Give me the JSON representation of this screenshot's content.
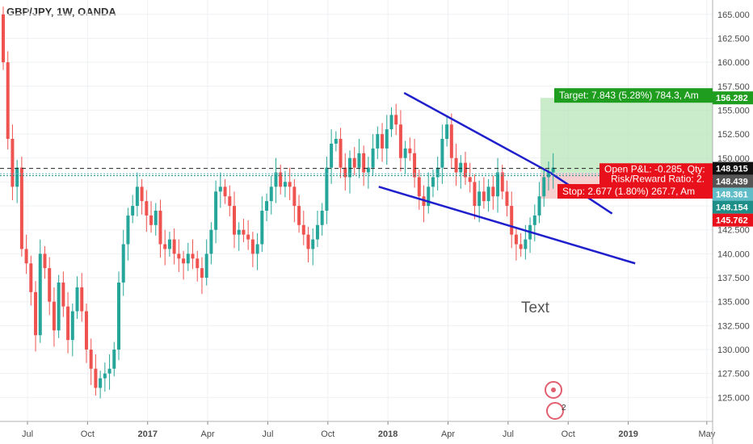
{
  "header": {
    "symbol": "GBP/JPY, 1W, OANDA"
  },
  "colors": {
    "up": "#26a69a",
    "down": "#ef5350",
    "trendline": "#1f1fcc",
    "target_zone": "#b9e6b9",
    "stop_zone": "#f7c4c4",
    "target_badge": "#1f9d1f",
    "stop_badge": "#e8101a",
    "position_badge": "#e8101a"
  },
  "chart_data": {
    "type": "candlestick",
    "title": "GBP/JPY, 1W, OANDA",
    "ylim": [
      122.5,
      166.5
    ],
    "yticks": [
      "165.000",
      "162.500",
      "160.000",
      "157.500",
      "155.000",
      "152.500",
      "150.000",
      "147.500",
      "145.000",
      "142.500",
      "140.000",
      "137.500",
      "135.000",
      "132.500",
      "130.000",
      "127.500",
      "125.000"
    ],
    "xticks": [
      {
        "label": "Jul",
        "x": 0
      },
      {
        "label": "Oct",
        "x": 13
      },
      {
        "label": "2017",
        "x": 26,
        "bold": true
      },
      {
        "label": "Apr",
        "x": 39
      },
      {
        "label": "Jul",
        "x": 52
      },
      {
        "label": "Oct",
        "x": 65
      },
      {
        "label": "2018",
        "x": 78,
        "bold": true
      },
      {
        "label": "Apr",
        "x": 91
      },
      {
        "label": "Jul",
        "x": 104
      },
      {
        "label": "Oct",
        "x": 117
      },
      {
        "label": "2019",
        "x": 130,
        "bold": true
      },
      {
        "label": "May",
        "x": 147
      }
    ],
    "candles_close": [
      160.0,
      152.0,
      147.0,
      149.0,
      140.5,
      139.0,
      136.0,
      131.5,
      140.0,
      138.5,
      135.0,
      132.0,
      137.0,
      134.5,
      131.0,
      134.0,
      136.5,
      134.0,
      130.0,
      128.0,
      126.0,
      127.0,
      127.5,
      128.0,
      130.0,
      137.0,
      141.0,
      144.0,
      145.0,
      147.0,
      145.5,
      144.0,
      143.0,
      144.5,
      141.0,
      140.5,
      141.5,
      140.0,
      139.5,
      139.0,
      140.0,
      139.5,
      138.5,
      137.5,
      140.0,
      142.5,
      146.5,
      147.0,
      146.0,
      145.0,
      142.0,
      142.5,
      142.0,
      141.5,
      140.0,
      141.0,
      144.5,
      145.5,
      147.0,
      148.5,
      147.0,
      147.5,
      147.0,
      145.0,
      143.0,
      142.0,
      140.5,
      141.5,
      143.0,
      144.5,
      149.0,
      151.5,
      152.0,
      149.0,
      148.0,
      150.0,
      149.0,
      150.5,
      148.5,
      149.0,
      151.0,
      152.5,
      151.0,
      153.0,
      154.5,
      153.5,
      150.0,
      151.0,
      150.5,
      148.0,
      146.0,
      145.0,
      147.0,
      148.0,
      149.0,
      152.0,
      153.5,
      150.0,
      148.5,
      149.5,
      148.0,
      147.5,
      145.0,
      146.5,
      145.5,
      147.0,
      146.0,
      148.5,
      146.5,
      145.0,
      142.0,
      141.0,
      140.5,
      141.5,
      143.0,
      144.0,
      146.0,
      148.0,
      148.5,
      149.0
    ],
    "candles_open_start": 165.0,
    "trendlines": [
      {
        "x1": 81.5,
        "y1": 156.8,
        "x2": 113.0,
        "y2": 148.5
      },
      {
        "x1": 113.0,
        "y1": 148.5,
        "x2": 126.5,
        "y2": 144.2
      },
      {
        "x1": 76.0,
        "y1": 147.0,
        "x2": 131.5,
        "y2": 139.0
      }
    ],
    "position": {
      "entry": 148.439,
      "target": 156.282,
      "stop": 145.762,
      "x_start": 111.0,
      "x_end": 149.5
    },
    "price_lines": [
      148.915,
      148.361,
      148.154
    ],
    "price_tags": [
      {
        "value": 156.282,
        "label": "156.282",
        "color": "#1f9d1f"
      },
      {
        "value": 148.915,
        "label": "148.915",
        "color": "#111111"
      },
      {
        "value": 148.439,
        "label": "148.439",
        "color": "#555555"
      },
      {
        "value": 148.361,
        "label": "148.361",
        "color": "#60bcc6"
      },
      {
        "value": 148.154,
        "label": "148.154",
        "color": "#1d8f88"
      },
      {
        "value": 145.762,
        "label": "145.762",
        "color": "#e8101a"
      }
    ],
    "annotations": {
      "target": "Target: 7.843 (5.28%) 784.3, Am",
      "open_pl": "Open P&L: -0.285, Qty:",
      "risk_reward": "Risk/Reward Ratio: 2.",
      "stop": "Stop: 2.677 (1.80%) 267.7, Am",
      "text": "Text"
    },
    "bottom_marker": "2"
  }
}
